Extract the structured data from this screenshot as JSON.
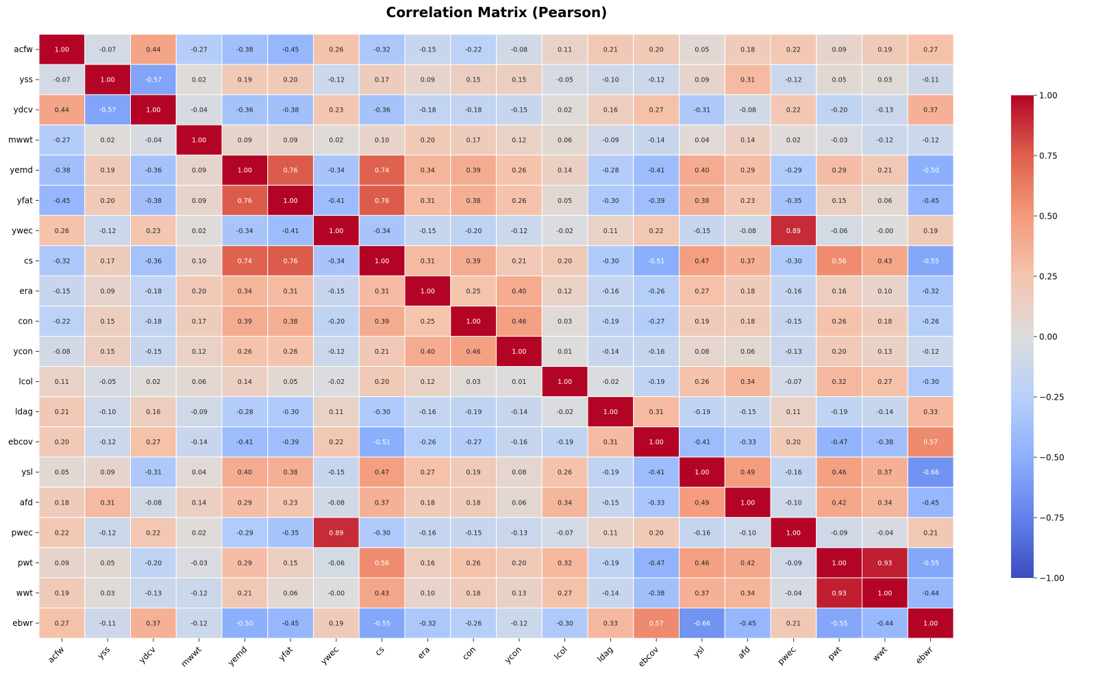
{
  "chart_data": {
    "type": "heatmap",
    "title": "Correlation Matrix (Pearson)",
    "xlabel": "",
    "ylabel": "",
    "labels": [
      "acfw",
      "yss",
      "ydcv",
      "mwwt",
      "yemd",
      "yfat",
      "ywec",
      "cs",
      "era",
      "con",
      "ycon",
      "lcol",
      "ldag",
      "ebcov",
      "ysl",
      "afd",
      "pwec",
      "pwt",
      "wwt",
      "ebwr"
    ],
    "matrix": [
      [
        1.0,
        -0.07,
        0.44,
        -0.27,
        -0.38,
        -0.45,
        0.26,
        -0.32,
        -0.15,
        -0.22,
        -0.08,
        0.11,
        0.21,
        0.2,
        0.05,
        0.18,
        0.22,
        0.09,
        0.19,
        0.27
      ],
      [
        -0.07,
        1.0,
        -0.57,
        0.02,
        0.19,
        0.2,
        -0.12,
        0.17,
        0.09,
        0.15,
        0.15,
        -0.05,
        -0.1,
        -0.12,
        0.09,
        0.31,
        -0.12,
        0.05,
        0.03,
        -0.11
      ],
      [
        0.44,
        -0.57,
        1.0,
        -0.04,
        -0.36,
        -0.38,
        0.23,
        -0.36,
        -0.18,
        -0.18,
        -0.15,
        0.02,
        0.16,
        0.27,
        -0.31,
        -0.08,
        0.22,
        -0.2,
        -0.13,
        0.37
      ],
      [
        -0.27,
        0.02,
        -0.04,
        1.0,
        0.09,
        0.09,
        0.02,
        0.1,
        0.2,
        0.17,
        0.12,
        0.06,
        -0.09,
        -0.14,
        0.04,
        0.14,
        0.02,
        -0.03,
        -0.12,
        -0.12
      ],
      [
        -0.38,
        0.19,
        -0.36,
        0.09,
        1.0,
        0.76,
        -0.34,
        0.74,
        0.34,
        0.39,
        0.26,
        0.14,
        -0.28,
        -0.41,
        0.4,
        0.29,
        -0.29,
        0.29,
        0.21,
        -0.5
      ],
      [
        -0.45,
        0.2,
        -0.38,
        0.09,
        0.76,
        1.0,
        -0.41,
        0.76,
        0.31,
        0.38,
        0.26,
        0.05,
        -0.3,
        -0.39,
        0.38,
        0.23,
        -0.35,
        0.15,
        0.06,
        -0.45
      ],
      [
        0.26,
        -0.12,
        0.23,
        0.02,
        -0.34,
        -0.41,
        1.0,
        -0.34,
        -0.15,
        -0.2,
        -0.12,
        -0.02,
        0.11,
        0.22,
        -0.15,
        -0.08,
        0.89,
        -0.06,
        -0.0,
        0.19
      ],
      [
        -0.32,
        0.17,
        -0.36,
        0.1,
        0.74,
        0.76,
        -0.34,
        1.0,
        0.31,
        0.39,
        0.21,
        0.2,
        -0.3,
        -0.51,
        0.47,
        0.37,
        -0.3,
        0.56,
        0.43,
        -0.55
      ],
      [
        -0.15,
        0.09,
        -0.18,
        0.2,
        0.34,
        0.31,
        -0.15,
        0.31,
        1.0,
        0.25,
        0.4,
        0.12,
        -0.16,
        -0.26,
        0.27,
        0.18,
        -0.16,
        0.16,
        0.1,
        -0.32
      ],
      [
        -0.22,
        0.15,
        -0.18,
        0.17,
        0.39,
        0.38,
        -0.2,
        0.39,
        0.25,
        1.0,
        0.46,
        0.03,
        -0.19,
        -0.27,
        0.19,
        0.18,
        -0.15,
        0.26,
        0.18,
        -0.26
      ],
      [
        -0.08,
        0.15,
        -0.15,
        0.12,
        0.26,
        0.26,
        -0.12,
        0.21,
        0.4,
        0.46,
        1.0,
        0.01,
        -0.14,
        -0.16,
        0.08,
        0.06,
        -0.13,
        0.2,
        0.13,
        -0.12
      ],
      [
        0.11,
        -0.05,
        0.02,
        0.06,
        0.14,
        0.05,
        -0.02,
        0.2,
        0.12,
        0.03,
        0.01,
        1.0,
        -0.02,
        -0.19,
        0.26,
        0.34,
        -0.07,
        0.32,
        0.27,
        -0.3
      ],
      [
        0.21,
        -0.1,
        0.16,
        -0.09,
        -0.28,
        -0.3,
        0.11,
        -0.3,
        -0.16,
        -0.19,
        -0.14,
        -0.02,
        1.0,
        0.31,
        -0.19,
        -0.15,
        0.11,
        -0.19,
        -0.14,
        0.33
      ],
      [
        0.2,
        -0.12,
        0.27,
        -0.14,
        -0.41,
        -0.39,
        0.22,
        -0.51,
        -0.26,
        -0.27,
        -0.16,
        -0.19,
        0.31,
        1.0,
        -0.41,
        -0.33,
        0.2,
        -0.47,
        -0.38,
        0.57
      ],
      [
        0.05,
        0.09,
        -0.31,
        0.04,
        0.4,
        0.38,
        -0.15,
        0.47,
        0.27,
        0.19,
        0.08,
        0.26,
        -0.19,
        -0.41,
        1.0,
        0.49,
        -0.16,
        0.46,
        0.37,
        -0.66
      ],
      [
        0.18,
        0.31,
        -0.08,
        0.14,
        0.29,
        0.23,
        -0.08,
        0.37,
        0.18,
        0.18,
        0.06,
        0.34,
        -0.15,
        -0.33,
        0.49,
        1.0,
        -0.1,
        0.42,
        0.34,
        -0.45
      ],
      [
        0.22,
        -0.12,
        0.22,
        0.02,
        -0.29,
        -0.35,
        0.89,
        -0.3,
        -0.16,
        -0.15,
        -0.13,
        -0.07,
        0.11,
        0.2,
        -0.16,
        -0.1,
        1.0,
        -0.09,
        -0.04,
        0.21
      ],
      [
        0.09,
        0.05,
        -0.2,
        -0.03,
        0.29,
        0.15,
        -0.06,
        0.56,
        0.16,
        0.26,
        0.2,
        0.32,
        -0.19,
        -0.47,
        0.46,
        0.42,
        -0.09,
        1.0,
        0.93,
        -0.55
      ],
      [
        0.19,
        0.03,
        -0.13,
        -0.12,
        0.21,
        0.06,
        -0.0,
        0.43,
        0.1,
        0.18,
        0.13,
        0.27,
        -0.14,
        -0.38,
        0.37,
        0.34,
        -0.04,
        0.93,
        1.0,
        -0.44
      ],
      [
        0.27,
        -0.11,
        0.37,
        -0.12,
        -0.5,
        -0.45,
        0.19,
        -0.55,
        -0.32,
        -0.26,
        -0.12,
        -0.3,
        0.33,
        0.57,
        -0.66,
        -0.45,
        0.21,
        -0.55,
        -0.44,
        1.0
      ]
    ],
    "value_range": [
      -1.0,
      1.0
    ],
    "colormap": "coolwarm",
    "annotation_format": "0.00",
    "colorbar": {
      "ticks": [
        -1.0,
        -0.75,
        -0.5,
        -0.25,
        0.0,
        0.25,
        0.5,
        0.75,
        1.0
      ],
      "tick_labels": [
        "−1.00",
        "−0.75",
        "−0.50",
        "−0.25",
        "0.00",
        "0.25",
        "0.50",
        "0.75",
        "1.00"
      ],
      "position": "right"
    },
    "grid_color": "#ffffff"
  }
}
